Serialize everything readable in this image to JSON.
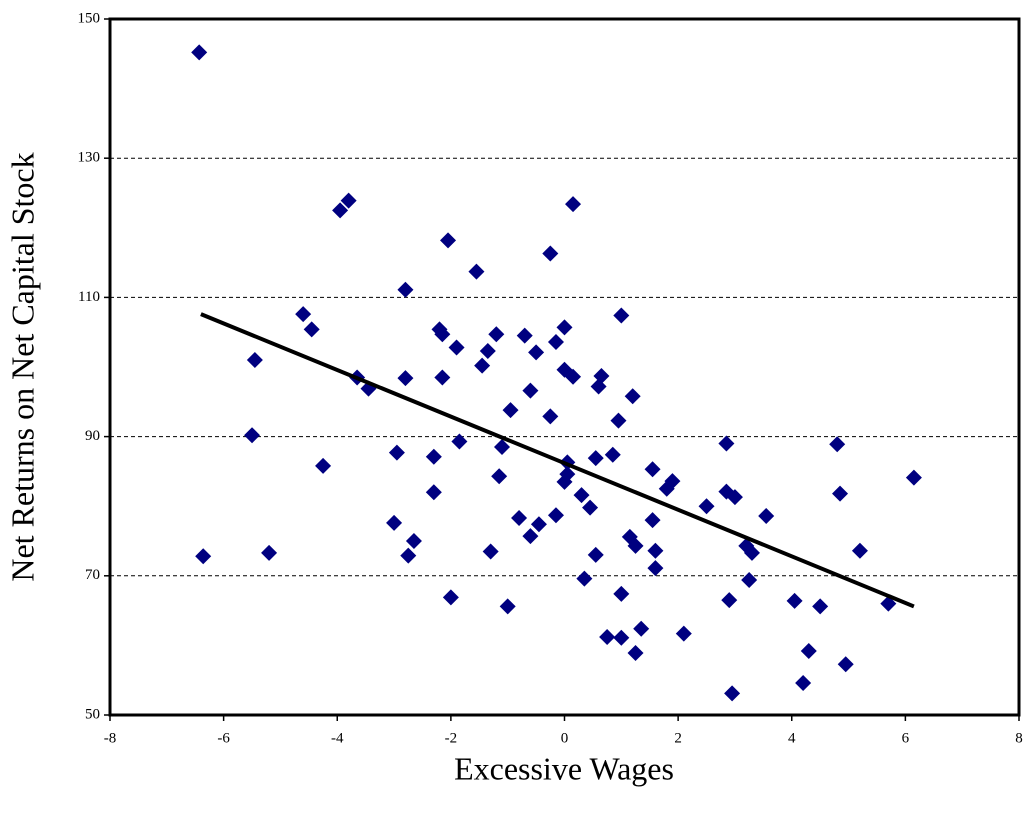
{
  "chart_data": {
    "type": "scatter",
    "xlabel": "Excessive Wages",
    "ylabel": "Net Returns on Net Capital Stock",
    "x": [
      -6.43,
      -6.36,
      -5.45,
      -5.5,
      -5.2,
      -4.6,
      -4.45,
      -4.25,
      -3.95,
      -3.8,
      -3.65,
      -3.45,
      -2.95,
      -3.0,
      -2.8,
      -2.8,
      -2.75,
      -2.65,
      -2.3,
      -2.3,
      -2.2,
      -2.15,
      -2.15,
      -2.05,
      -2.0,
      -1.9,
      -1.85,
      -1.55,
      -1.45,
      -1.35,
      -1.3,
      -1.2,
      -1.15,
      -1.1,
      -0.95,
      -1.0,
      -0.8,
      -0.7,
      -0.6,
      -0.6,
      -0.5,
      -0.45,
      -0.25,
      -0.25,
      -0.15,
      -0.15,
      0.0,
      0.0,
      0.0,
      0.05,
      0.05,
      0.15,
      0.15,
      0.3,
      0.35,
      0.45,
      0.55,
      0.55,
      0.6,
      0.65,
      0.75,
      0.85,
      0.95,
      1.0,
      1.0,
      1.0,
      1.15,
      1.2,
      1.25,
      1.25,
      1.35,
      1.55,
      1.55,
      1.6,
      1.6,
      1.8,
      1.9,
      2.1,
      2.5,
      2.85,
      2.85,
      2.9,
      2.95,
      3.0,
      3.2,
      3.25,
      3.3,
      3.55,
      4.05,
      4.2,
      4.3,
      4.5,
      4.8,
      4.85,
      4.95,
      5.2,
      5.7,
      6.15
    ],
    "values": [
      145.2,
      72.8,
      101,
      90.2,
      73.3,
      107.6,
      105.4,
      85.8,
      122.5,
      123.9,
      98.5,
      96.9,
      87.7,
      77.6,
      111.1,
      98.4,
      72.9,
      75,
      87.1,
      82,
      105.4,
      104.7,
      98.5,
      118.2,
      66.9,
      102.8,
      89.3,
      113.7,
      100.2,
      102.3,
      73.5,
      104.7,
      84.3,
      88.5,
      93.8,
      65.6,
      78.3,
      104.5,
      96.6,
      75.7,
      102.1,
      77.4,
      116.3,
      92.9,
      103.6,
      78.7,
      105.7,
      99.6,
      83.5,
      84.6,
      86.3,
      123.4,
      98.6,
      81.6,
      69.6,
      79.8,
      73,
      86.9,
      97.2,
      98.7,
      61.2,
      87.4,
      92.3,
      107.4,
      67.4,
      61.1,
      75.6,
      95.8,
      74.3,
      58.9,
      62.4,
      85.3,
      78,
      73.6,
      71.1,
      82.5,
      83.6,
      61.7,
      80,
      89,
      82.1,
      66.5,
      53.1,
      81.3,
      74.3,
      69.4,
      73.3,
      78.6,
      66.4,
      54.6,
      59.2,
      65.6,
      88.9,
      81.8,
      57.3,
      73.6,
      66,
      84.1
    ],
    "color": "#000080",
    "trendline": {
      "x": [
        -6.4,
        6.15
      ],
      "y": [
        107.6,
        65.6
      ],
      "color": "#000000"
    },
    "xlim": [
      -8,
      8
    ],
    "xticks": [
      -8,
      -6,
      -4,
      -2,
      0,
      2,
      4,
      6,
      8
    ],
    "ylim": [
      50,
      150
    ],
    "yticks": [
      50,
      70,
      90,
      110,
      130,
      150
    ],
    "grid": true
  }
}
